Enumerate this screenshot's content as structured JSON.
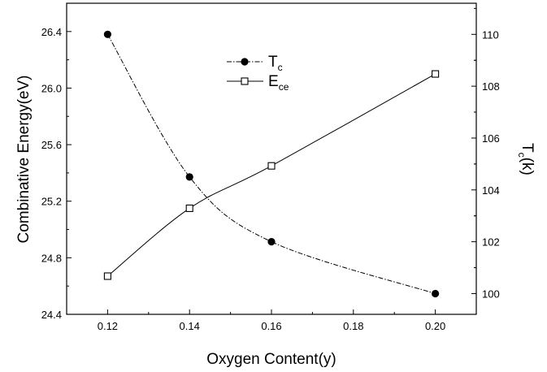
{
  "chart_data": {
    "type": "line",
    "title": "",
    "xlabel": "Oxygen Content(y)",
    "ylabel_left": "Combinative Energy(eV)",
    "ylabel_right_main": "T",
    "ylabel_right_sub": "c",
    "ylabel_right_tail": "(k)",
    "xlim": [
      0.11,
      0.21
    ],
    "x_ticks": [
      "0.12",
      "0.14",
      "0.16",
      "0.18",
      "0.20"
    ],
    "ylim_left": [
      24.4,
      26.6
    ],
    "y_left_ticks": [
      "24.4",
      "24.8",
      "25.2",
      "25.6",
      "26.0",
      "26.4"
    ],
    "ylim_right": [
      99.2,
      111.2
    ],
    "y_right_ticks": [
      "100",
      "102",
      "104",
      "106",
      "108",
      "110"
    ],
    "grid": false,
    "legend_position": "top-center",
    "series": [
      {
        "name_main": "T",
        "name_sub": "c",
        "axis": "right",
        "marker": "filled-circle",
        "line_style": "dash-dot",
        "x": [
          0.12,
          0.14,
          0.16,
          0.2
        ],
        "y": [
          110.0,
          104.5,
          102.0,
          100.0
        ]
      },
      {
        "name_main": "E",
        "name_sub": "ce",
        "axis": "left",
        "marker": "open-square",
        "line_style": "solid",
        "x": [
          0.12,
          0.14,
          0.16,
          0.2
        ],
        "y": [
          24.67,
          25.15,
          25.45,
          26.1
        ]
      }
    ]
  }
}
